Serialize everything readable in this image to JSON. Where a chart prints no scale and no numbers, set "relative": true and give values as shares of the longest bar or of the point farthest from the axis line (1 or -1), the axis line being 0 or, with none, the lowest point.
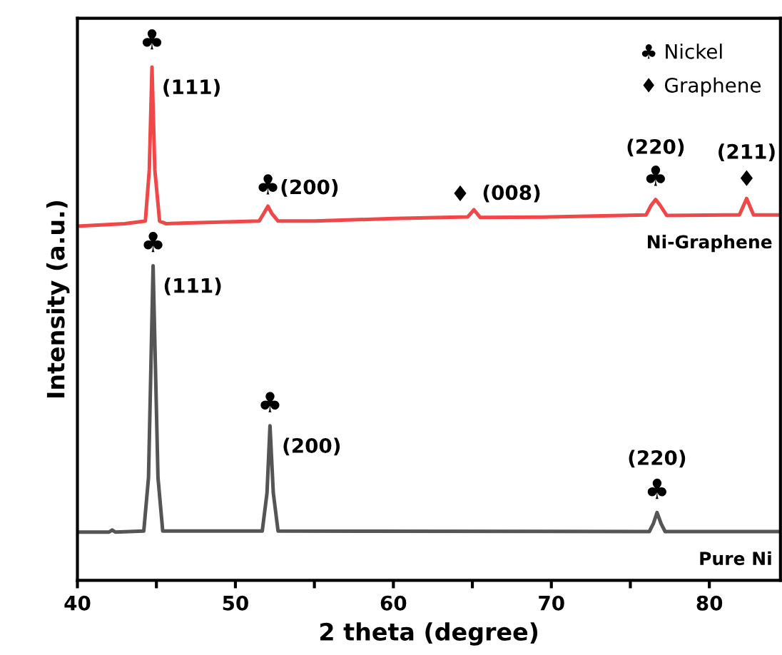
{
  "chart_data": {
    "type": "line",
    "relative": true,
    "xlabel": "2 theta (degree)",
    "ylabel": "Intensity (a.u.)",
    "xlim": [
      40,
      84.5
    ],
    "xticks": [
      40,
      {
        "value": 45,
        "label": null
      },
      50,
      {
        "value": 55,
        "label": null
      },
      60,
      {
        "value": 65,
        "label": null
      },
      70,
      {
        "value": 75,
        "label": null
      },
      80
    ],
    "grid": false,
    "marker": "none",
    "line_style": "solid",
    "series": [
      {
        "name": "Ni-Graphene",
        "color": "#f04848",
        "x": [
          40,
          43,
          44.3,
          44.55,
          44.72,
          44.9,
          45.2,
          45.6,
          51.5,
          51.8,
          52.06,
          52.3,
          52.7,
          55,
          60,
          64.7,
          65.1,
          65.5,
          70,
          76.0,
          76.3,
          76.6,
          76.9,
          77.3,
          81.9,
          82.36,
          82.8,
          84.5
        ],
        "values": [
          0.69,
          0.695,
          0.7,
          0.8,
          1.0,
          0.8,
          0.7,
          0.695,
          0.7,
          0.715,
          0.729,
          0.715,
          0.7,
          0.7,
          0.705,
          0.708,
          0.722,
          0.707,
          0.708,
          0.712,
          0.73,
          0.742,
          0.73,
          0.711,
          0.712,
          0.744,
          0.712,
          0.712
        ]
      },
      {
        "name": "Pure Ni",
        "color": "#555555",
        "x": [
          40,
          42.0,
          42.2,
          42.4,
          44.2,
          44.5,
          44.79,
          45.1,
          45.4,
          51.7,
          52.0,
          52.19,
          52.4,
          52.7,
          76.2,
          76.45,
          76.69,
          76.95,
          77.2,
          84.5
        ],
        "values": [
          0.094,
          0.094,
          0.098,
          0.094,
          0.096,
          0.2,
          0.613,
          0.2,
          0.096,
          0.096,
          0.17,
          0.301,
          0.17,
          0.096,
          0.095,
          0.11,
          0.132,
          0.11,
          0.095,
          0.095
        ]
      }
    ],
    "annotations": [
      "♣ Nickel",
      "♦ Graphene",
      {
        "text": "♣",
        "x": 44.72,
        "y": 1.0
      },
      {
        "text": "(111)",
        "x": 44.72,
        "y": 1.0
      },
      {
        "text": "♣",
        "x": 52.06,
        "y": 0.729
      },
      {
        "text": "(200)",
        "x": 52.06,
        "y": 0.729
      },
      {
        "text": "♦",
        "x": 65.1,
        "y": 0.722
      },
      {
        "text": "(008)",
        "x": 65.1,
        "y": 0.722
      },
      {
        "text": "♣",
        "x": 76.6,
        "y": 0.742
      },
      {
        "text": "(220)",
        "x": 76.6,
        "y": 0.742
      },
      {
        "text": "♦",
        "x": 82.36,
        "y": 0.744
      },
      {
        "text": "(211)",
        "x": 82.36,
        "y": 0.744
      },
      {
        "text": "♣",
        "x": 44.79,
        "y": 0.613
      },
      {
        "text": "(111)",
        "x": 44.79,
        "y": 0.613
      },
      {
        "text": "♣",
        "x": 52.19,
        "y": 0.301
      },
      {
        "text": "(200)",
        "x": 52.19,
        "y": 0.301
      },
      {
        "text": "♣",
        "x": 76.69,
        "y": 0.132
      },
      {
        "text": "(220)",
        "x": 76.69,
        "y": 0.132
      }
    ]
  }
}
